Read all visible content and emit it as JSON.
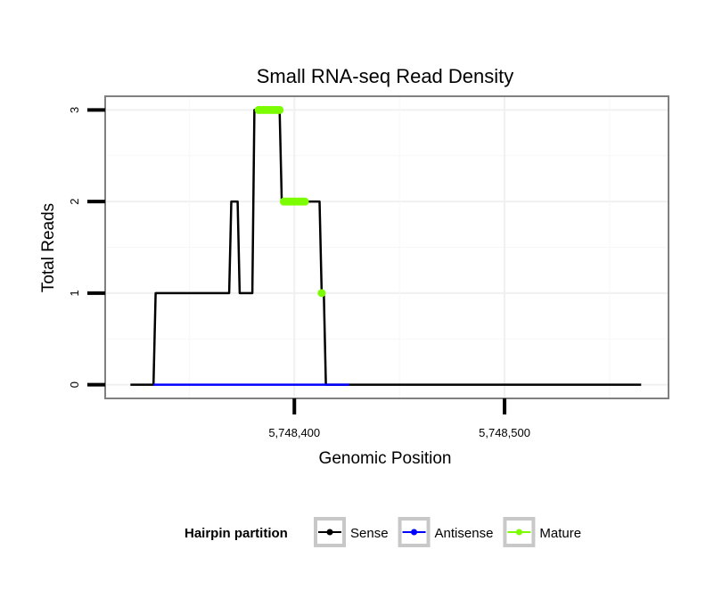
{
  "chart_data": {
    "type": "line",
    "title": "Small RNA-seq Read Density",
    "xlabel": "Genomic Position",
    "ylabel": "Total Reads",
    "xlim": [
      5748310,
      5748578
    ],
    "ylim": [
      -0.15,
      3.15
    ],
    "x_ticks": [
      {
        "value": 5748400,
        "label": "5,748,400"
      },
      {
        "value": 5748500,
        "label": "5,748,500"
      }
    ],
    "y_ticks": [
      {
        "value": 0,
        "label": "0"
      },
      {
        "value": 1,
        "label": "1"
      },
      {
        "value": 2,
        "label": "2"
      },
      {
        "value": 3,
        "label": "3"
      }
    ],
    "grid": true,
    "legend": {
      "title": "Hairpin partition",
      "position": "bottom",
      "entries": [
        {
          "name": "Sense",
          "color": "#000000"
        },
        {
          "name": "Antisense",
          "color": "#0000ff"
        },
        {
          "name": "Mature",
          "color": "#7cfc00"
        }
      ]
    },
    "series": [
      {
        "name": "Sense",
        "color": "#000000",
        "x": [
          5748322,
          5748333,
          5748334,
          5748369,
          5748370,
          5748373,
          5748374,
          5748375,
          5748376,
          5748380,
          5748381,
          5748382,
          5748383,
          5748393,
          5748394,
          5748403,
          5748404,
          5748412,
          5748413,
          5748414,
          5748415,
          5748426,
          5748427,
          5748565
        ],
        "y": [
          0,
          0,
          1,
          1,
          2,
          2,
          1,
          1,
          1,
          1,
          3,
          3,
          3,
          3,
          2,
          2,
          2,
          2,
          1,
          1,
          0,
          0,
          0,
          0
        ]
      },
      {
        "name": "Antisense",
        "color": "#0000ff",
        "x": [
          5748333,
          5748426
        ],
        "y": [
          0,
          0
        ]
      },
      {
        "name": "Mature",
        "color": "#7cfc00",
        "x": [
          5748383,
          5748384,
          5748385,
          5748386,
          5748387,
          5748388,
          5748389,
          5748390,
          5748391,
          5748392,
          5748393,
          5748395,
          5748396,
          5748397,
          5748398,
          5748399,
          5748400,
          5748401,
          5748402,
          5748403,
          5748404,
          5748405,
          5748413
        ],
        "y": [
          3,
          3,
          3,
          3,
          3,
          3,
          3,
          3,
          3,
          3,
          3,
          2,
          2,
          2,
          2,
          2,
          2,
          2,
          2,
          2,
          2,
          2,
          1
        ]
      }
    ]
  }
}
